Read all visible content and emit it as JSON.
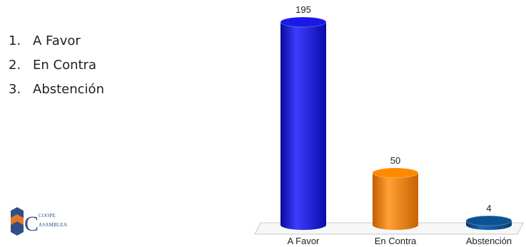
{
  "options": [
    {
      "number": "1.",
      "label": "A Favor"
    },
    {
      "number": "2.",
      "label": "En Contra"
    },
    {
      "number": "3.",
      "label": "Abstención"
    }
  ],
  "logo": {
    "text_top": "COOPE",
    "text_bottom": "ASAMBLEA"
  },
  "colors": {
    "blue": "#1a1ae6",
    "orange": "#ff8a00",
    "navy": "#0c5393",
    "logo_navy": "#2f4f87",
    "logo_orange": "#e87722"
  },
  "chart_data": {
    "type": "bar",
    "categories": [
      "A Favor",
      "En Contra",
      "Abstención"
    ],
    "values": [
      195,
      50,
      4
    ],
    "value_labels": [
      "195",
      "50",
      "4"
    ],
    "colors": [
      "#1a1ae6",
      "#ff8a00",
      "#0c5393"
    ],
    "ylim": [
      0,
      195
    ],
    "grid": false,
    "legend": "none",
    "style": "3d-cylinder"
  }
}
